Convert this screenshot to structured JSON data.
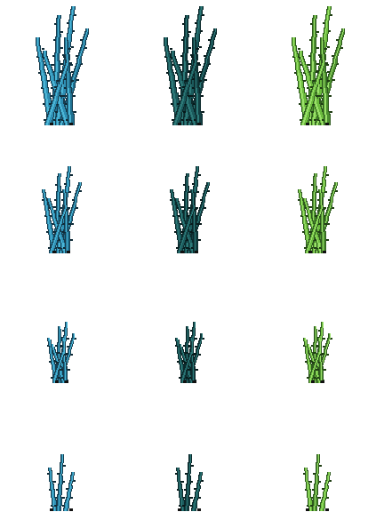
{
  "sprite_sheet": {
    "description_visible_text": "",
    "background": "#ffffff",
    "columns": [
      {
        "variant": "blue",
        "colors": {
          "outline": "#173d4f",
          "dark": "#1f6f8f",
          "mid": "#2e8fb4",
          "light": "#4cb6d6",
          "spike": "#0f2a36"
        }
      },
      {
        "variant": "dark-teal",
        "colors": {
          "outline": "#0c2a2c",
          "dark": "#123f42",
          "mid": "#1b5a5c",
          "light": "#2d7a78",
          "spike": "#071a1b"
        }
      },
      {
        "variant": "green",
        "colors": {
          "outline": "#2f5a1f",
          "dark": "#4c8f2f",
          "mid": "#6cbc3e",
          "light": "#9be06b",
          "spike": "#1f3d13"
        }
      }
    ],
    "rows": [
      {
        "stage": "large",
        "scale": 1.0
      },
      {
        "stage": "medium",
        "scale": 0.72
      },
      {
        "stage": "small",
        "scale": 0.5
      },
      {
        "stage": "sprout",
        "scale": 0.38
      }
    ]
  }
}
